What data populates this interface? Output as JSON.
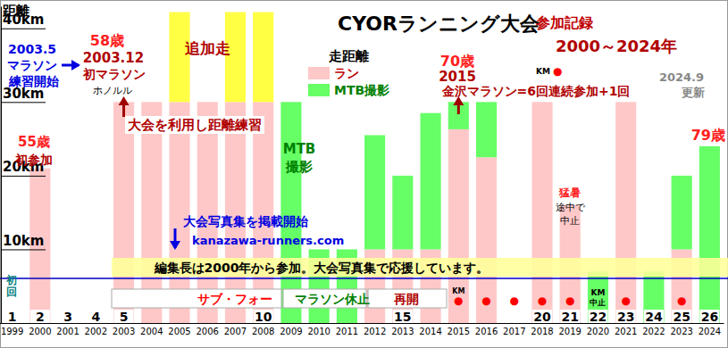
{
  "chart_data": {
    "type": "bar",
    "stacked": true,
    "title": "CYORランニング大会",
    "subtitle": "参加記録",
    "y_label": "距離",
    "legend": "top",
    "legend_title": "走距離",
    "categories": [
      "1999",
      "2000",
      "2001",
      "2002",
      "2003",
      "2004",
      "2005",
      "2006",
      "2007",
      "2008",
      "2009",
      "2010",
      "2011",
      "2012",
      "2013",
      "2014",
      "2015",
      "2016",
      "2017",
      "2018",
      "2019",
      "2020",
      "2021",
      "2022",
      "2023",
      "2024"
    ],
    "series": [
      {
        "name": "ラン",
        "color": "#ffc8c8",
        "values": [
          0,
          21,
          0,
          0,
          30,
          30,
          30,
          30,
          30,
          30,
          0,
          0,
          0,
          10,
          10,
          10,
          26.3,
          22.5,
          0,
          30,
          16,
          0,
          30,
          0,
          10,
          0
        ]
      },
      {
        "name": "MTB撮影",
        "color": "#66ff66",
        "values": [
          0,
          0,
          0,
          0,
          0,
          0,
          0,
          0,
          0,
          0,
          30,
          10,
          10,
          15.5,
          10,
          18.5,
          3.7,
          7.5,
          0,
          0,
          0,
          7,
          0,
          7,
          10,
          24
        ]
      },
      {
        "name": "追加走",
        "color": "#ffff44",
        "values": [
          0,
          0,
          0,
          0,
          0,
          0,
          12.2,
          0,
          12.2,
          12.2,
          0,
          0,
          0,
          0,
          0,
          0,
          0,
          0,
          0,
          0,
          0,
          0,
          0,
          0,
          0,
          0
        ]
      }
    ],
    "ylim": [
      0,
      43
    ],
    "yticks": [
      {
        "value": 10,
        "label": "10km"
      },
      {
        "value": 20,
        "label": "20km"
      },
      {
        "value": 30,
        "label": "30km"
      },
      {
        "value": 40,
        "label": "40km"
      }
    ],
    "race_numbers": [
      1,
      2,
      3,
      4,
      5,
      null,
      null,
      null,
      null,
      10,
      null,
      null,
      null,
      null,
      15,
      null,
      null,
      null,
      null,
      20,
      21,
      22,
      23,
      24,
      25,
      26
    ],
    "km_marks": [
      null,
      null,
      null,
      null,
      null,
      null,
      null,
      null,
      null,
      null,
      null,
      null,
      null,
      null,
      null,
      null,
      "●",
      "●",
      "●",
      "●",
      "●",
      "KM中止",
      "●",
      null,
      "●",
      null
    ],
    "km_legend": [
      "KM",
      "●"
    ],
    "annotations": [
      "2000～2024年",
      "2024.9",
      "更新",
      "55歳",
      "初参加",
      "2003.5",
      "マラソン",
      "練習開始",
      "58歳",
      "2003.12",
      "初マラソン",
      "ホノルル",
      "大会を利用し距離練習",
      "MTB",
      "撮影",
      "70歳",
      "2015",
      "金沢マラソン=6回連続参加+1回",
      "79歳",
      "猛暑",
      "途中で",
      "中止",
      "大会写真集を掲載開始",
      "kanazawa-runners.com",
      "編集長は2000年から参加。大会写真集で応援しています。",
      "初回",
      "サブ・フォー",
      "マラソン休止",
      "再開"
    ]
  }
}
